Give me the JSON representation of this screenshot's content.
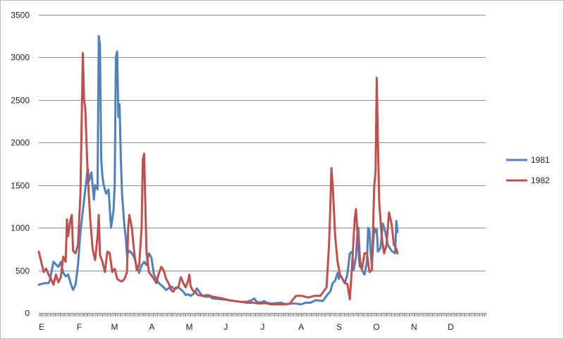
{
  "chart_data": {
    "type": "line",
    "title": "",
    "xlabel": "",
    "ylabel": "",
    "ylim": [
      0,
      3500
    ],
    "yticks": [
      0,
      500,
      1000,
      1500,
      2000,
      2500,
      3000,
      3500
    ],
    "ytick_labels": [
      "0",
      "500",
      "1000",
      "1500",
      "2000",
      "2500",
      "3000",
      "3500"
    ],
    "xlim": [
      0,
      365
    ],
    "x_categories": [
      "E",
      "F",
      "M",
      "A",
      "M",
      "J",
      "J",
      "A",
      "S",
      "O",
      "N",
      "D"
    ],
    "x_category_positions": [
      0,
      31,
      59,
      90,
      120,
      151,
      181,
      212,
      243,
      273,
      304,
      334
    ],
    "grid": "horizontal",
    "legend_position": "right",
    "series": [
      {
        "name": "1981",
        "color": "#4f81bd",
        "points": [
          [
            0,
            330
          ],
          [
            5,
            350
          ],
          [
            8,
            350
          ],
          [
            9,
            380
          ],
          [
            12,
            600
          ],
          [
            16,
            540
          ],
          [
            18,
            600
          ],
          [
            20,
            470
          ],
          [
            22,
            430
          ],
          [
            24,
            450
          ],
          [
            26,
            350
          ],
          [
            28,
            270
          ],
          [
            30,
            330
          ],
          [
            32,
            560
          ],
          [
            34,
            950
          ],
          [
            36,
            1200
          ],
          [
            38,
            1450
          ],
          [
            40,
            1700
          ],
          [
            41,
            1550
          ],
          [
            43,
            1650
          ],
          [
            45,
            1330
          ],
          [
            46,
            1500
          ],
          [
            48,
            1450
          ],
          [
            49,
            3250
          ],
          [
            50,
            3150
          ],
          [
            51,
            1800
          ],
          [
            52,
            1600
          ],
          [
            53,
            1500
          ],
          [
            55,
            1400
          ],
          [
            57,
            1450
          ],
          [
            59,
            1000
          ],
          [
            61,
            1200
          ],
          [
            62,
            1500
          ],
          [
            63,
            3000
          ],
          [
            64,
            3070
          ],
          [
            65,
            2300
          ],
          [
            66,
            2450
          ],
          [
            67,
            1800
          ],
          [
            68,
            1400
          ],
          [
            69,
            1200
          ],
          [
            70,
            1000
          ],
          [
            71,
            900
          ],
          [
            72,
            680
          ],
          [
            74,
            730
          ],
          [
            76,
            700
          ],
          [
            78,
            650
          ],
          [
            80,
            550
          ],
          [
            82,
            470
          ],
          [
            84,
            560
          ],
          [
            86,
            600
          ],
          [
            88,
            560
          ],
          [
            90,
            700
          ],
          [
            92,
            650
          ],
          [
            94,
            450
          ],
          [
            96,
            400
          ],
          [
            98,
            350
          ],
          [
            102,
            300
          ],
          [
            104,
            270
          ],
          [
            106,
            290
          ],
          [
            108,
            310
          ],
          [
            111,
            280
          ],
          [
            114,
            300
          ],
          [
            118,
            250
          ],
          [
            120,
            210
          ],
          [
            122,
            220
          ],
          [
            124,
            200
          ],
          [
            126,
            220
          ],
          [
            128,
            250
          ],
          [
            129,
            290
          ],
          [
            130,
            270
          ],
          [
            132,
            230
          ],
          [
            134,
            200
          ],
          [
            136,
            190
          ],
          [
            140,
            190
          ],
          [
            142,
            170
          ],
          [
            146,
            165
          ],
          [
            150,
            160
          ],
          [
            155,
            150
          ],
          [
            160,
            140
          ],
          [
            165,
            130
          ],
          [
            170,
            130
          ],
          [
            174,
            150
          ],
          [
            176,
            170
          ],
          [
            178,
            130
          ],
          [
            181,
            120
          ],
          [
            184,
            140
          ],
          [
            186,
            120
          ],
          [
            190,
            110
          ],
          [
            194,
            115
          ],
          [
            198,
            120
          ],
          [
            202,
            100
          ],
          [
            206,
            110
          ],
          [
            210,
            110
          ],
          [
            214,
            100
          ],
          [
            218,
            120
          ],
          [
            222,
            120
          ],
          [
            226,
            150
          ],
          [
            232,
            140
          ],
          [
            236,
            220
          ],
          [
            238,
            250
          ],
          [
            240,
            350
          ],
          [
            242,
            380
          ],
          [
            244,
            470
          ],
          [
            245,
            400
          ],
          [
            246,
            450
          ],
          [
            248,
            400
          ],
          [
            250,
            350
          ],
          [
            252,
            450
          ],
          [
            254,
            700
          ],
          [
            256,
            720
          ],
          [
            257,
            500
          ],
          [
            259,
            650
          ],
          [
            260,
            900
          ],
          [
            261,
            1000
          ],
          [
            262,
            700
          ],
          [
            263,
            550
          ],
          [
            264,
            500
          ],
          [
            266,
            450
          ],
          [
            268,
            600
          ],
          [
            269,
            1000
          ],
          [
            270,
            970
          ],
          [
            271,
            720
          ],
          [
            272,
            550
          ],
          [
            273,
            800
          ],
          [
            274,
            1000
          ],
          [
            275,
            950
          ],
          [
            276,
            980
          ],
          [
            277,
            720
          ],
          [
            279,
            760
          ],
          [
            281,
            1050
          ],
          [
            283,
            950
          ],
          [
            285,
            800
          ],
          [
            288,
            730
          ],
          [
            291,
            700
          ],
          [
            292,
            1080
          ],
          [
            293,
            950
          ]
        ]
      },
      {
        "name": "1982",
        "color": "#c0504d",
        "points": [
          [
            0,
            720
          ],
          [
            2,
            600
          ],
          [
            4,
            480
          ],
          [
            6,
            520
          ],
          [
            8,
            450
          ],
          [
            10,
            400
          ],
          [
            12,
            330
          ],
          [
            14,
            450
          ],
          [
            16,
            360
          ],
          [
            18,
            420
          ],
          [
            20,
            660
          ],
          [
            22,
            600
          ],
          [
            23,
            1100
          ],
          [
            24,
            900
          ],
          [
            25,
            1000
          ],
          [
            26,
            1100
          ],
          [
            27,
            1150
          ],
          [
            28,
            730
          ],
          [
            30,
            700
          ],
          [
            32,
            800
          ],
          [
            34,
            1400
          ],
          [
            36,
            3050
          ],
          [
            37,
            2500
          ],
          [
            38,
            2400
          ],
          [
            39,
            2000
          ],
          [
            40,
            1600
          ],
          [
            42,
            1100
          ],
          [
            44,
            750
          ],
          [
            46,
            620
          ],
          [
            48,
            900
          ],
          [
            49,
            1150
          ],
          [
            50,
            680
          ],
          [
            52,
            600
          ],
          [
            54,
            480
          ],
          [
            56,
            720
          ],
          [
            58,
            700
          ],
          [
            60,
            480
          ],
          [
            62,
            520
          ],
          [
            64,
            400
          ],
          [
            66,
            380
          ],
          [
            68,
            370
          ],
          [
            70,
            400
          ],
          [
            72,
            480
          ],
          [
            73,
            1000
          ],
          [
            74,
            1150
          ],
          [
            76,
            1000
          ],
          [
            78,
            700
          ],
          [
            80,
            500
          ],
          [
            82,
            560
          ],
          [
            84,
            1000
          ],
          [
            85,
            1800
          ],
          [
            86,
            1870
          ],
          [
            87,
            1300
          ],
          [
            88,
            700
          ],
          [
            90,
            480
          ],
          [
            94,
            400
          ],
          [
            96,
            350
          ],
          [
            98,
            460
          ],
          [
            100,
            540
          ],
          [
            102,
            500
          ],
          [
            104,
            400
          ],
          [
            106,
            350
          ],
          [
            108,
            270
          ],
          [
            110,
            250
          ],
          [
            112,
            300
          ],
          [
            114,
            300
          ],
          [
            116,
            420
          ],
          [
            118,
            350
          ],
          [
            120,
            300
          ],
          [
            122,
            380
          ],
          [
            123,
            450
          ],
          [
            124,
            310
          ],
          [
            126,
            260
          ],
          [
            128,
            240
          ],
          [
            130,
            210
          ],
          [
            134,
            200
          ],
          [
            138,
            210
          ],
          [
            142,
            190
          ],
          [
            146,
            180
          ],
          [
            150,
            170
          ],
          [
            155,
            150
          ],
          [
            160,
            140
          ],
          [
            165,
            130
          ],
          [
            170,
            120
          ],
          [
            175,
            120
          ],
          [
            180,
            110
          ],
          [
            185,
            115
          ],
          [
            190,
            100
          ],
          [
            195,
            100
          ],
          [
            200,
            100
          ],
          [
            205,
            110
          ],
          [
            210,
            200
          ],
          [
            215,
            200
          ],
          [
            220,
            180
          ],
          [
            225,
            200
          ],
          [
            230,
            200
          ],
          [
            235,
            300
          ],
          [
            237,
            800
          ],
          [
            238,
            1200
          ],
          [
            239,
            1700
          ],
          [
            240,
            1500
          ],
          [
            241,
            1200
          ],
          [
            242,
            900
          ],
          [
            244,
            600
          ],
          [
            246,
            450
          ],
          [
            248,
            400
          ],
          [
            250,
            350
          ],
          [
            252,
            340
          ],
          [
            254,
            160
          ],
          [
            256,
            600
          ],
          [
            258,
            1100
          ],
          [
            259,
            1220
          ],
          [
            260,
            1000
          ],
          [
            262,
            550
          ],
          [
            264,
            520
          ],
          [
            266,
            700
          ],
          [
            268,
            700
          ],
          [
            270,
            480
          ],
          [
            272,
            500
          ],
          [
            274,
            1500
          ],
          [
            275,
            1650
          ],
          [
            276,
            2760
          ],
          [
            277,
            2000
          ],
          [
            278,
            1300
          ],
          [
            280,
            900
          ],
          [
            282,
            700
          ],
          [
            284,
            800
          ],
          [
            286,
            1180
          ],
          [
            288,
            1050
          ],
          [
            290,
            800
          ],
          [
            292,
            750
          ],
          [
            293,
            700
          ]
        ]
      }
    ]
  }
}
